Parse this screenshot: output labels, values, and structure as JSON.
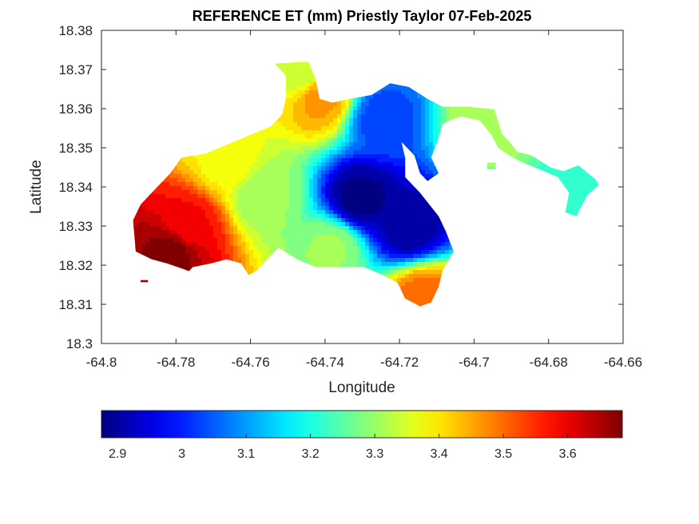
{
  "chart_data": {
    "type": "heatmap",
    "title": "REFERENCE ET (mm) Priestly Taylor 07-Feb-2025",
    "xlabel": "Longitude",
    "ylabel": "Latitude",
    "xlim": [
      -64.8,
      -64.66
    ],
    "ylim": [
      18.3,
      18.38
    ],
    "grid": false,
    "x_ticks": [
      -64.8,
      -64.78,
      -64.76,
      -64.74,
      -64.72,
      -64.7,
      -64.68,
      -64.66
    ],
    "x_tick_labels": [
      "-64.8",
      "-64.78",
      "-64.76",
      "-64.74",
      "-64.72",
      "-64.7",
      "-64.68",
      "-64.66"
    ],
    "y_ticks": [
      18.3,
      18.31,
      18.32,
      18.33,
      18.34,
      18.35,
      18.36,
      18.37,
      18.38
    ],
    "y_tick_labels": [
      "18.3",
      "18.31",
      "18.32",
      "18.33",
      "18.34",
      "18.35",
      "18.36",
      "18.37",
      "18.38"
    ],
    "colormap": "jet",
    "colorbar": {
      "placement": "bottom",
      "range": [
        2.875,
        3.685
      ],
      "ticks": [
        2.9,
        3.0,
        3.1,
        3.2,
        3.3,
        3.4,
        3.5,
        3.6
      ],
      "tick_labels": [
        "2.9",
        "3",
        "3.1",
        "3.2",
        "3.3",
        "3.4",
        "3.5",
        "3.6"
      ]
    },
    "value_range": [
      2.88,
      3.68
    ],
    "extent": {
      "outline": [
        [
          -64.7908,
          18.3235
        ],
        [
          -64.7915,
          18.3315
        ],
        [
          -64.7895,
          18.3355
        ],
        [
          -64.786,
          18.339
        ],
        [
          -64.7815,
          18.3435
        ],
        [
          -64.7785,
          18.3475
        ],
        [
          -64.772,
          18.3485
        ],
        [
          -64.7645,
          18.3515
        ],
        [
          -64.7595,
          18.3535
        ],
        [
          -64.7545,
          18.3555
        ],
        [
          -64.7515,
          18.3585
        ],
        [
          -64.7505,
          18.3625
        ],
        [
          -64.7505,
          18.3685
        ],
        [
          -64.7535,
          18.3715
        ],
        [
          -64.7445,
          18.372
        ],
        [
          -64.7425,
          18.3675
        ],
        [
          -64.7415,
          18.3625
        ],
        [
          -64.738,
          18.3615
        ],
        [
          -64.7335,
          18.3625
        ],
        [
          -64.7275,
          18.3635
        ],
        [
          -64.7225,
          18.3665
        ],
        [
          -64.7175,
          18.3655
        ],
        [
          -64.7125,
          18.3625
        ],
        [
          -64.7085,
          18.3605
        ],
        [
          -64.7015,
          18.3605
        ],
        [
          -64.6945,
          18.3598
        ],
        [
          -64.6935,
          18.3565
        ],
        [
          -64.6925,
          18.3535
        ],
        [
          -64.6905,
          18.3515
        ],
        [
          -64.6885,
          18.349
        ],
        [
          -64.6845,
          18.348
        ],
        [
          -64.682,
          18.3465
        ],
        [
          -64.6795,
          18.345
        ],
        [
          -64.676,
          18.344
        ],
        [
          -64.672,
          18.3455
        ],
        [
          -64.6675,
          18.342
        ],
        [
          -64.6665,
          18.3405
        ],
        [
          -64.6695,
          18.338
        ],
        [
          -64.6715,
          18.3345
        ],
        [
          -64.6725,
          18.3325
        ],
        [
          -64.6755,
          18.3335
        ],
        [
          -64.6745,
          18.3385
        ],
        [
          -64.6775,
          18.3425
        ],
        [
          -64.6825,
          18.3445
        ],
        [
          -64.6875,
          18.3465
        ],
        [
          -64.6905,
          18.348
        ],
        [
          -64.6935,
          18.35
        ],
        [
          -64.6955,
          18.3535
        ],
        [
          -64.6985,
          18.357
        ],
        [
          -64.7035,
          18.358
        ],
        [
          -64.7065,
          18.357
        ],
        [
          -64.7085,
          18.356
        ],
        [
          -64.7095,
          18.3525
        ],
        [
          -64.7115,
          18.3475
        ],
        [
          -64.7095,
          18.3435
        ],
        [
          -64.7125,
          18.3415
        ],
        [
          -64.7145,
          18.3435
        ],
        [
          -64.716,
          18.348
        ],
        [
          -64.7195,
          18.3515
        ],
        [
          -64.7185,
          18.3475
        ],
        [
          -64.7185,
          18.3425
        ],
        [
          -64.7145,
          18.3385
        ],
        [
          -64.7095,
          18.3325
        ],
        [
          -64.7075,
          18.3285
        ],
        [
          -64.7055,
          18.3235
        ],
        [
          -64.7085,
          18.3185
        ],
        [
          -64.7095,
          18.3145
        ],
        [
          -64.7115,
          18.3105
        ],
        [
          -64.7145,
          18.3095
        ],
        [
          -64.7185,
          18.3115
        ],
        [
          -64.7205,
          18.3155
        ],
        [
          -64.7245,
          18.3175
        ],
        [
          -64.7295,
          18.3195
        ],
        [
          -64.7365,
          18.3195
        ],
        [
          -64.7425,
          18.3195
        ],
        [
          -64.7475,
          18.3215
        ],
        [
          -64.7525,
          18.3245
        ],
        [
          -64.7555,
          18.3215
        ],
        [
          -64.7585,
          18.3185
        ],
        [
          -64.7605,
          18.3175
        ],
        [
          -64.7625,
          18.3205
        ],
        [
          -64.7665,
          18.3215
        ],
        [
          -64.7705,
          18.3205
        ],
        [
          -64.7755,
          18.3195
        ],
        [
          -64.7765,
          18.3185
        ],
        [
          -64.7795,
          18.3195
        ],
        [
          -64.7825,
          18.3205
        ],
        [
          -64.7865,
          18.3215
        ]
      ],
      "islands": [
        [
          [
            -64.7895,
            18.3162
          ],
          [
            -64.7875,
            18.3162
          ],
          [
            -64.7875,
            18.3157
          ],
          [
            -64.7895,
            18.3157
          ]
        ],
        [
          [
            -64.6965,
            18.3462
          ],
          [
            -64.6942,
            18.3462
          ],
          [
            -64.6942,
            18.3445
          ],
          [
            -64.6965,
            18.3445
          ]
        ]
      ]
    },
    "field_centers": [
      {
        "label": "low-core",
        "lon": -64.7305,
        "lat": 18.337,
        "value": 2.88
      },
      {
        "label": "low-east",
        "lon": -64.7175,
        "lat": 18.33,
        "value": 2.9
      },
      {
        "label": "low-north",
        "lon": -64.7245,
        "lat": 18.3575,
        "value": 3.03
      },
      {
        "label": "high-southwest",
        "lon": -64.7815,
        "lat": 18.3235,
        "value": 3.68
      },
      {
        "label": "high-west",
        "lon": -64.7765,
        "lat": 18.3305,
        "value": 3.58
      },
      {
        "label": "mid-north-patch",
        "lon": -64.7415,
        "lat": 18.3625,
        "value": 3.46
      },
      {
        "label": "mid-south-patch",
        "lon": -64.7135,
        "lat": 18.3115,
        "value": 3.5
      },
      {
        "label": "northwest",
        "lon": -64.7665,
        "lat": 18.3465,
        "value": 3.38
      },
      {
        "label": "central-west",
        "lon": -64.7565,
        "lat": 18.3375,
        "value": 3.3
      },
      {
        "label": "north-strip",
        "lon": -64.7465,
        "lat": 18.3695,
        "value": 3.33
      },
      {
        "label": "east-spur",
        "lon": -64.6705,
        "lat": 18.3405,
        "value": 3.22
      },
      {
        "label": "northeast-arm",
        "lon": -64.6975,
        "lat": 18.3565,
        "value": 3.32
      },
      {
        "label": "south-central",
        "lon": -64.7385,
        "lat": 18.3245,
        "value": 3.3
      }
    ]
  }
}
